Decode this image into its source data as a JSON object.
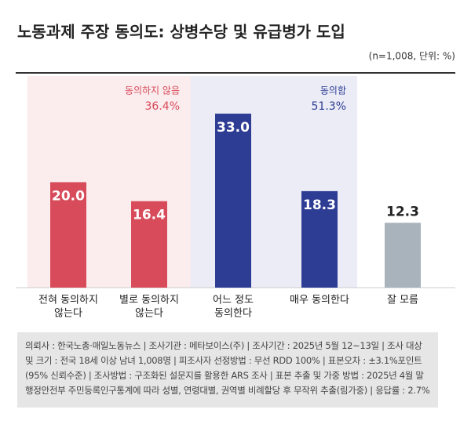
{
  "chart_data": {
    "type": "bar",
    "title": "노동과제 주장 동의도: 상병수당 및 유급병가 도입",
    "subtitle": "(n=1,008, 단위: %)",
    "categories": [
      [
        "전혀 동의하지",
        "않는다"
      ],
      [
        "별로 동의하지",
        "않는다"
      ],
      [
        "어느 정도",
        "동의한다"
      ],
      [
        "매우 동의한다"
      ],
      [
        "잘 모름"
      ]
    ],
    "values": [
      20.0,
      16.4,
      33.0,
      18.3,
      12.3
    ],
    "value_labels": [
      "20.0",
      "16.4",
      "33.0",
      "18.3",
      "12.3"
    ],
    "colors": [
      "#d84b5b",
      "#d84b5b",
      "#2e3d94",
      "#2e3d94",
      "#a9b3bc"
    ],
    "groups": [
      {
        "name": "동의하지 않음",
        "value": 36.4,
        "value_label": "36.4%",
        "color": "#d84b5b",
        "background": "#fbeced"
      },
      {
        "name": "동의함",
        "value": 51.3,
        "value_label": "51.3%",
        "color": "#2e3d94",
        "background": "#ebecf6"
      }
    ],
    "note": "의뢰사 : 한국노총·매일노동뉴스 | 조사기관 : 메타보이스(주) | 조사기간 : 2025년 5월 12~13일 | 조사 대상 및 크기 : 전국 18세 이상 남녀 1,008명 | 피조사자 선정방법 : 무선 RDD 100% | 표본오차 : ±3.1%포인트(95% 신뢰수준) | 조사방법 : 구조화된 설문지를 활용한 ARS 조사 | 표본 추출 및 가중 방법 : 2025년 4월 말 행정안전부 주민등록인구통계에 따라 성별, 연령대별, 권역별 비례할당 후 무작위 추출(림가중) | 응답률 : 2.7%"
  }
}
